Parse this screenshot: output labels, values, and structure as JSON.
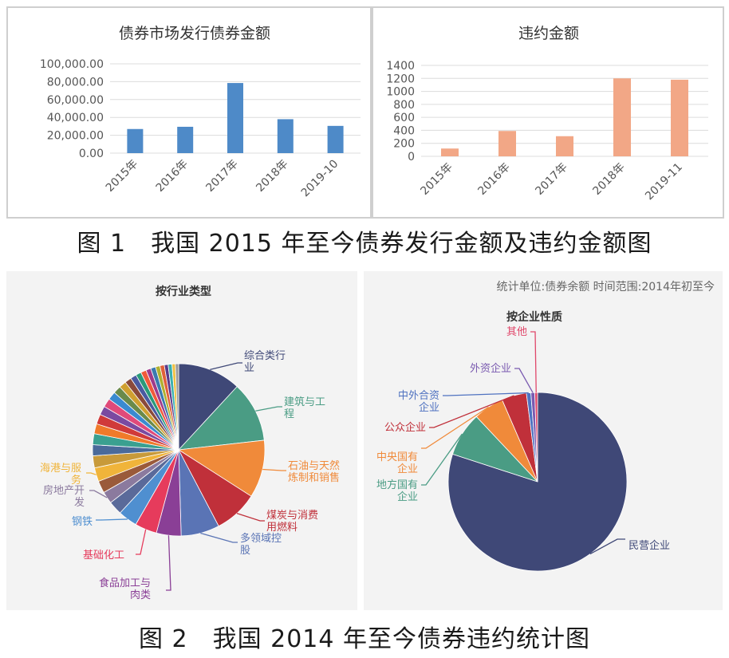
{
  "figure1": {
    "caption": "图 1　我国 2015 年至今债券发行金额及违约金额图"
  },
  "figure2": {
    "caption": "图 2　我国 2014 年至今债券违约统计图",
    "note": "统计单位:债券余额 时间范围:2014年初至今"
  },
  "chart_data": [
    {
      "type": "bar",
      "title": "债券市场发行债券金额",
      "categories": [
        "2015年",
        "2016年",
        "2017年",
        "2018年",
        "2019-10"
      ],
      "values": [
        27000,
        29500,
        78500,
        38000,
        30500
      ],
      "ylim": [
        0,
        100000
      ],
      "yticks": [
        "0.00",
        "20,000.00",
        "40,000.00",
        "60,000.00",
        "80,000.00",
        "100,000.00"
      ],
      "ytick_values": [
        0,
        20000,
        40000,
        60000,
        80000,
        100000
      ],
      "color": "#4e8ac8",
      "grid": true
    },
    {
      "type": "bar",
      "title": "违约金额",
      "categories": [
        "2015年",
        "2016年",
        "2017年",
        "2018年",
        "2019-11"
      ],
      "values": [
        120,
        390,
        310,
        1200,
        1180
      ],
      "ylim": [
        0,
        1400
      ],
      "yticks": [
        "0",
        "200",
        "400",
        "600",
        "800",
        "1000",
        "1200",
        "1400"
      ],
      "ytick_values": [
        0,
        200,
        400,
        600,
        800,
        1000,
        1200,
        1400
      ],
      "color": "#f2a786",
      "grid": true
    },
    {
      "type": "pie",
      "title": "按行业类型",
      "slices": [
        {
          "label": "综合类行业",
          "value": 11.5,
          "color": "#3f4877"
        },
        {
          "label": "建筑与工程",
          "value": 11,
          "color": "#4a9c84"
        },
        {
          "label": "石油与天然气炼制和销售",
          "value": 10.5,
          "color": "#f08a3a"
        },
        {
          "label": "煤炭与消费用燃料",
          "value": 8,
          "color": "#c0303a"
        },
        {
          "label": "多领域控股",
          "value": 7,
          "color": "#5a74b5"
        },
        {
          "label": "食品加工与肉类",
          "value": 4.5,
          "color": "#8a3f96"
        },
        {
          "label": "基础化工",
          "value": 4,
          "color": "#e63b5c"
        },
        {
          "label": "钢铁",
          "value": 3.5,
          "color": "#4f8fd0"
        },
        {
          "label": "",
          "value": 2.5,
          "color": "#5a6a9a"
        },
        {
          "label": "房地产开发",
          "value": 2.2,
          "color": "#8b7a9e"
        },
        {
          "label": "",
          "value": 2.2,
          "color": "#9a5a3a"
        },
        {
          "label": "海港与服务",
          "value": 2.5,
          "color": "#f0b43a"
        },
        {
          "label": "",
          "value": 2.2,
          "color": "#c89a3a"
        },
        {
          "label": "",
          "value": 2,
          "color": "#4a6a9a"
        },
        {
          "label": "",
          "value": 2,
          "color": "#3aa090"
        },
        {
          "label": "",
          "value": 1.8,
          "color": "#f07a2a"
        },
        {
          "label": "",
          "value": 1.8,
          "color": "#d03a3a"
        },
        {
          "label": "",
          "value": 1.6,
          "color": "#7a4aa0"
        },
        {
          "label": "",
          "value": 1.6,
          "color": "#e04a7a"
        },
        {
          "label": "",
          "value": 1.5,
          "color": "#3a8ad0"
        },
        {
          "label": "",
          "value": 1.4,
          "color": "#6a8a4a"
        },
        {
          "label": "",
          "value": 1.3,
          "color": "#d0a030"
        },
        {
          "label": "",
          "value": 1.2,
          "color": "#8a4a3a"
        },
        {
          "label": "",
          "value": 1.1,
          "color": "#4a5aa0"
        },
        {
          "label": "",
          "value": 1,
          "color": "#2a9a7a"
        },
        {
          "label": "",
          "value": 1,
          "color": "#f05a3a"
        },
        {
          "label": "",
          "value": 0.9,
          "color": "#a03a8a"
        },
        {
          "label": "",
          "value": 0.9,
          "color": "#3a7ab0"
        },
        {
          "label": "",
          "value": 0.8,
          "color": "#b0b030"
        },
        {
          "label": "",
          "value": 0.8,
          "color": "#e0603a"
        },
        {
          "label": "",
          "value": 0.7,
          "color": "#5a3a8a"
        },
        {
          "label": "",
          "value": 0.7,
          "color": "#3ab0b0"
        },
        {
          "label": "",
          "value": 0.6,
          "color": "#f0c040"
        },
        {
          "label": "",
          "value": 0.6,
          "color": "#9a9a9a"
        }
      ]
    },
    {
      "type": "pie",
      "title": "按企业性质",
      "slices": [
        {
          "label": "民营企业",
          "value": 80,
          "color": "#3f4877"
        },
        {
          "label": "地方国有企业",
          "value": 8,
          "color": "#4a9c84"
        },
        {
          "label": "中央国有企业",
          "value": 5.5,
          "color": "#f08a3a"
        },
        {
          "label": "公众企业",
          "value": 4.5,
          "color": "#c0303a"
        },
        {
          "label": "中外合资企业",
          "value": 0.8,
          "color": "#4f72c0"
        },
        {
          "label": "外资企业",
          "value": 0.7,
          "color": "#7a5ab0"
        },
        {
          "label": "其他",
          "value": 0.5,
          "color": "#e0476a"
        }
      ]
    }
  ]
}
